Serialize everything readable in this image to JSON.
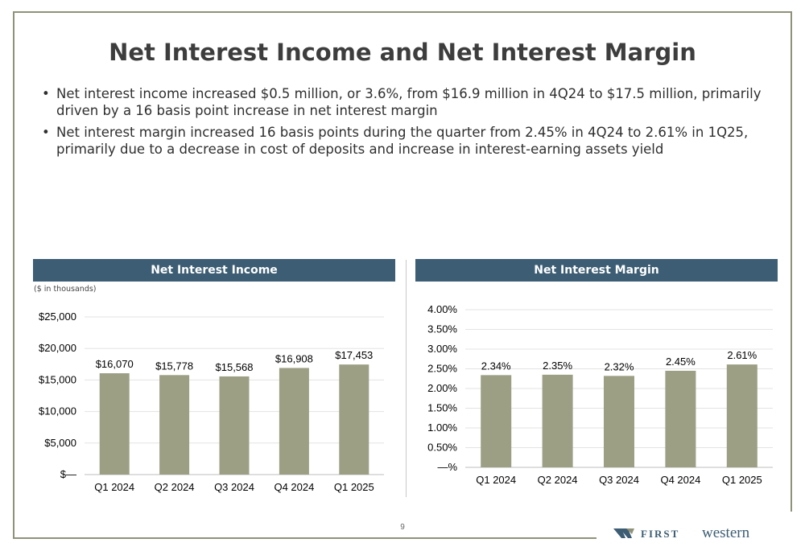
{
  "title": "Net Interest Income and Net Interest Margin",
  "bullets": [
    "Net interest income increased $0.5 million, or 3.6%, from $16.9 million in 4Q24 to $17.5 million, primarily driven by  a 16 basis point increase in net interest margin",
    "Net interest margin increased 16 basis points during the quarter from 2.45% in 4Q24 to 2.61% in 1Q25, primarily due to a decrease in cost of deposits and increase in interest-earning assets yield"
  ],
  "bullet_glyph": "•",
  "units_note": "($ in thousands)",
  "page_number": "9",
  "logo": {
    "word1": "FIRST",
    "word2": "western"
  },
  "colors": {
    "bar": "#9c9f84",
    "header": "#3c5d73",
    "frame": "#8f9279",
    "grid": "#e3e3e3"
  },
  "chart_data": [
    {
      "type": "bar",
      "title": "Net Interest Income",
      "categories": [
        "Q1 2024",
        "Q2 2024",
        "Q3 2024",
        "Q4 2024",
        "Q1 2025"
      ],
      "values": [
        16070,
        15778,
        15568,
        16908,
        17453
      ],
      "value_labels": [
        "$16,070",
        "$15,778",
        "$15,568",
        "$16,908",
        "$17,453"
      ],
      "yticks": [
        0,
        5000,
        10000,
        15000,
        20000,
        25000
      ],
      "ytick_labels": [
        "$—",
        "$5,000",
        "$10,000",
        "$15,000",
        "$20,000",
        "$25,000"
      ],
      "ylim": [
        0,
        25000
      ],
      "grid": true
    },
    {
      "type": "bar",
      "title": "Net Interest Margin",
      "categories": [
        "Q1 2024",
        "Q2 2024",
        "Q3 2024",
        "Q4 2024",
        "Q1 2025"
      ],
      "values": [
        2.34,
        2.35,
        2.32,
        2.45,
        2.61
      ],
      "value_labels": [
        "2.34%",
        "2.35%",
        "2.32%",
        "2.45%",
        "2.61%"
      ],
      "yticks": [
        0,
        0.5,
        1.0,
        1.5,
        2.0,
        2.5,
        3.0,
        3.5,
        4.0
      ],
      "ytick_labels": [
        "—%",
        "0.50%",
        "1.00%",
        "1.50%",
        "2.00%",
        "2.50%",
        "3.00%",
        "3.50%",
        "4.00%"
      ],
      "ylim": [
        0,
        4.0
      ],
      "grid": true
    }
  ]
}
